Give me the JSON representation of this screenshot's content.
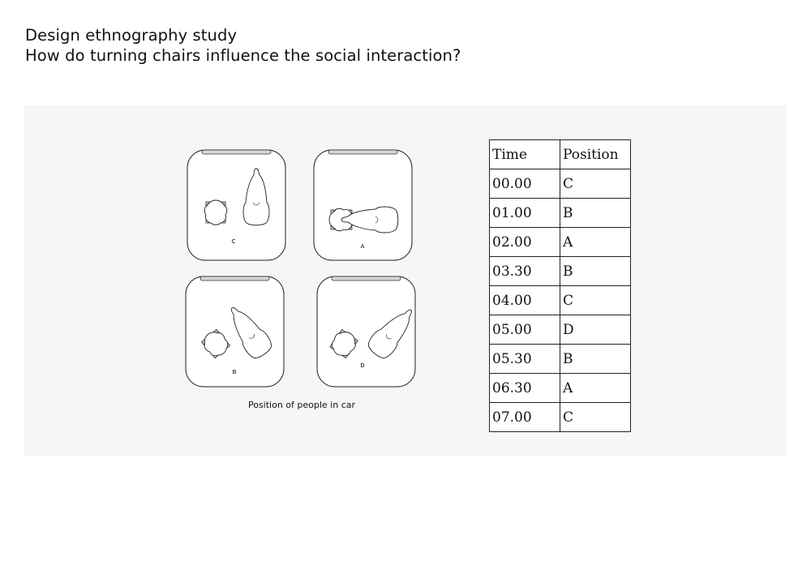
{
  "title_line1": "Design ethnography study",
  "title_line2": "How do turning chairs influence the social interaction?",
  "caption": "Position of people in car",
  "diagram_labels": {
    "a": "A",
    "b": "B",
    "c": "C",
    "d": "D"
  },
  "table": {
    "headers": [
      "Time",
      "Position"
    ],
    "rows": [
      [
        "00.00",
        "C"
      ],
      [
        "01.00",
        "B"
      ],
      [
        "02.00",
        "A"
      ],
      [
        "03.30",
        "B"
      ],
      [
        "04.00",
        "C"
      ],
      [
        "05.00",
        "D"
      ],
      [
        "05.30",
        "B"
      ],
      [
        "06.30",
        "A"
      ],
      [
        "07.00",
        "C"
      ]
    ]
  }
}
